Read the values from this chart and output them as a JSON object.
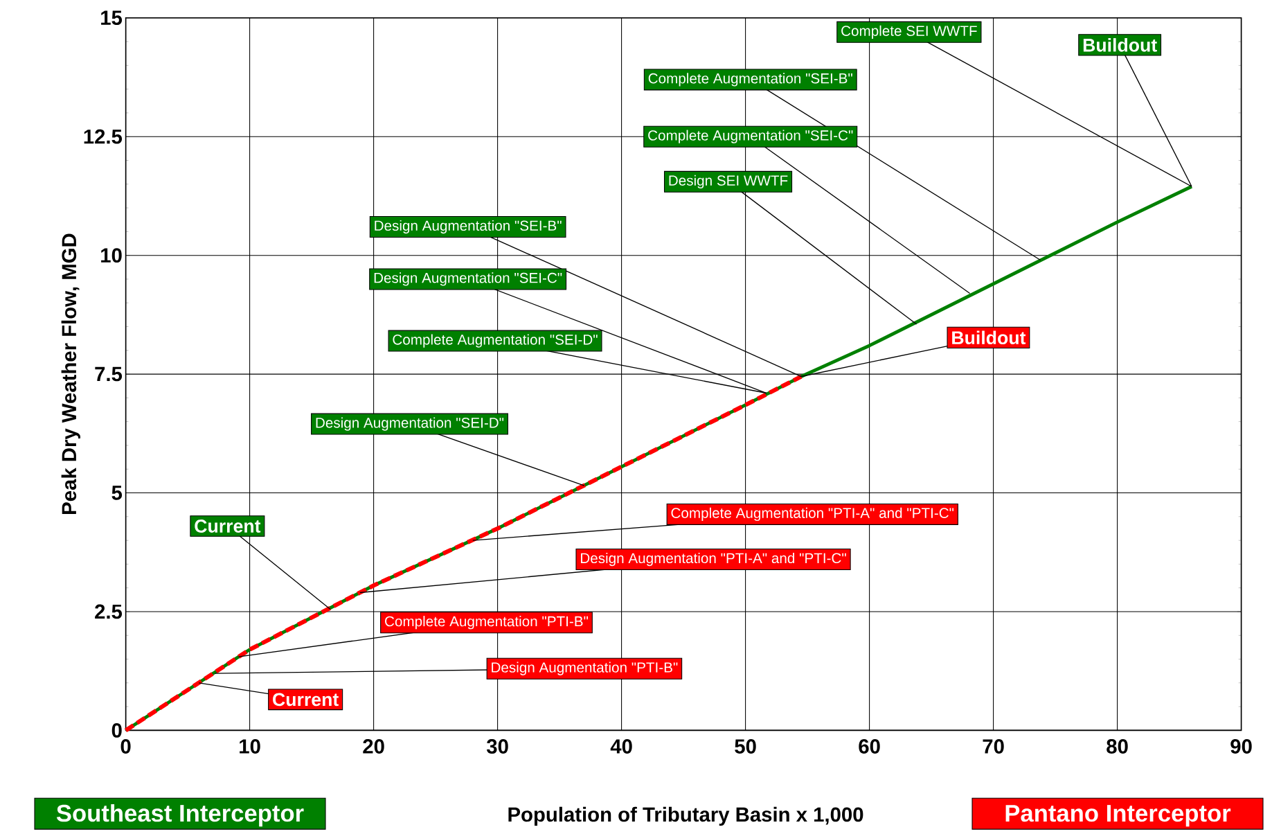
{
  "chart_data": {
    "type": "line",
    "xlabel": "Population of Tributary Basin x 1,000",
    "ylabel": "Peak Dry Weather Flow, MGD",
    "xlim": [
      0,
      90
    ],
    "xticks": [
      0,
      10,
      20,
      30,
      40,
      50,
      60,
      70,
      80,
      90
    ],
    "ylim": [
      0,
      15
    ],
    "yticks": [
      0,
      2.5,
      5,
      7.5,
      10,
      12.5,
      15
    ],
    "grid": true,
    "legend": "bottom",
    "series": [
      {
        "name": "Southeast Interceptor",
        "color": "#008000",
        "line_style": "solid",
        "x": [
          0,
          10,
          20,
          30,
          40,
          50,
          54.5,
          60,
          70,
          80,
          86
        ],
        "values": [
          0,
          1.7,
          3.05,
          4.25,
          5.55,
          6.85,
          7.45,
          8.1,
          9.4,
          10.7,
          11.45
        ]
      },
      {
        "name": "Pantano Interceptor",
        "color": "#ff0000",
        "line_style": "dashed",
        "x": [
          0,
          10,
          20,
          30,
          40,
          50,
          54.5
        ],
        "values": [
          0,
          1.7,
          3.05,
          4.25,
          5.55,
          6.85,
          7.45
        ]
      }
    ],
    "annotations": [
      {
        "text": "Current",
        "x": 16.5,
        "y": 2.55
      },
      {
        "text": "Design Augmentation \"SEI-D\"",
        "x": 37,
        "y": 5.15
      },
      {
        "text": "Complete Augmentation \"SEI-D\"",
        "x": 51.7,
        "y": 7.1
      },
      {
        "text": "Design Augmentation \"SEI-C\"",
        "x": 51.7,
        "y": 7.1
      },
      {
        "text": "Design Augmentation \"SEI-B\"",
        "x": 54.5,
        "y": 7.45
      },
      {
        "text": "Design SEI WWTF",
        "x": 63.8,
        "y": 8.55
      },
      {
        "text": "Complete Augmentation \"SEI-C\"",
        "x": 68.1,
        "y": 9.2
      },
      {
        "text": "Complete Augmentation \"SEI-B\"",
        "x": 73.8,
        "y": 9.9
      },
      {
        "text": "Complete SEI WWTF",
        "x": 86,
        "y": 11.45
      },
      {
        "text": "Buildout",
        "x": 86,
        "y": 11.45
      },
      {
        "text": "Current",
        "x": 5.9,
        "y": 1.0
      },
      {
        "text": "Design Augmentation \"PTI-B\"",
        "x": 7.2,
        "y": 1.2
      },
      {
        "text": "Complete Augmentation \"PTI-B\"",
        "x": 9.1,
        "y": 1.55
      },
      {
        "text": "Design Augmentation \"PTI-A\" and \"PTI-C\"",
        "x": 18.9,
        "y": 2.9
      },
      {
        "text": "Complete Augmentation \"PTI-A\" and \"PTI-C\"",
        "x": 28,
        "y": 4.0
      },
      {
        "text": "Buildout",
        "x": 54.5,
        "y": 7.45
      }
    ]
  }
}
